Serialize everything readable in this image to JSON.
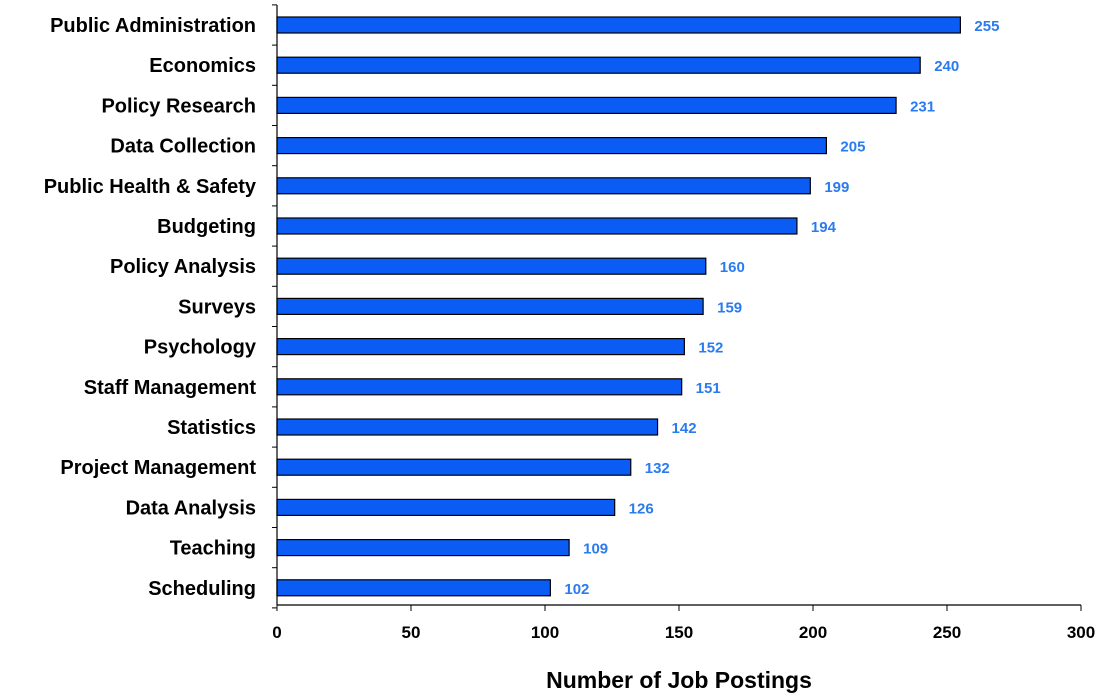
{
  "chart_data": {
    "type": "bar",
    "orientation": "horizontal",
    "categories": [
      "Public Administration",
      "Economics",
      "Policy Research",
      "Data Collection",
      "Public Health & Safety",
      "Budgeting",
      "Policy Analysis",
      "Surveys",
      "Psychology",
      "Staff Management",
      "Statistics",
      "Project Management",
      "Data Analysis",
      "Teaching",
      "Scheduling"
    ],
    "values": [
      255,
      240,
      231,
      205,
      199,
      194,
      160,
      159,
      152,
      151,
      142,
      132,
      126,
      109,
      102
    ],
    "value_labels": [
      "255",
      "240",
      "231",
      "205",
      "199",
      "194",
      "160",
      "159",
      "152",
      "151",
      "142",
      "132",
      "126",
      "109",
      "102"
    ],
    "title": "",
    "xlabel": "Number of Job Postings",
    "ylabel": "",
    "xlim": [
      0,
      300
    ],
    "xticks": [
      0,
      50,
      100,
      150,
      200,
      250,
      300
    ],
    "xtick_labels": [
      "0",
      "50",
      "100",
      "150",
      "200",
      "250",
      "300"
    ],
    "grid": false,
    "legend": "none",
    "colors": {
      "bar_fill": "#0a5cf5",
      "bar_stroke": "#000000",
      "value_label": "#2b7bf0",
      "axis": "#000000"
    }
  }
}
